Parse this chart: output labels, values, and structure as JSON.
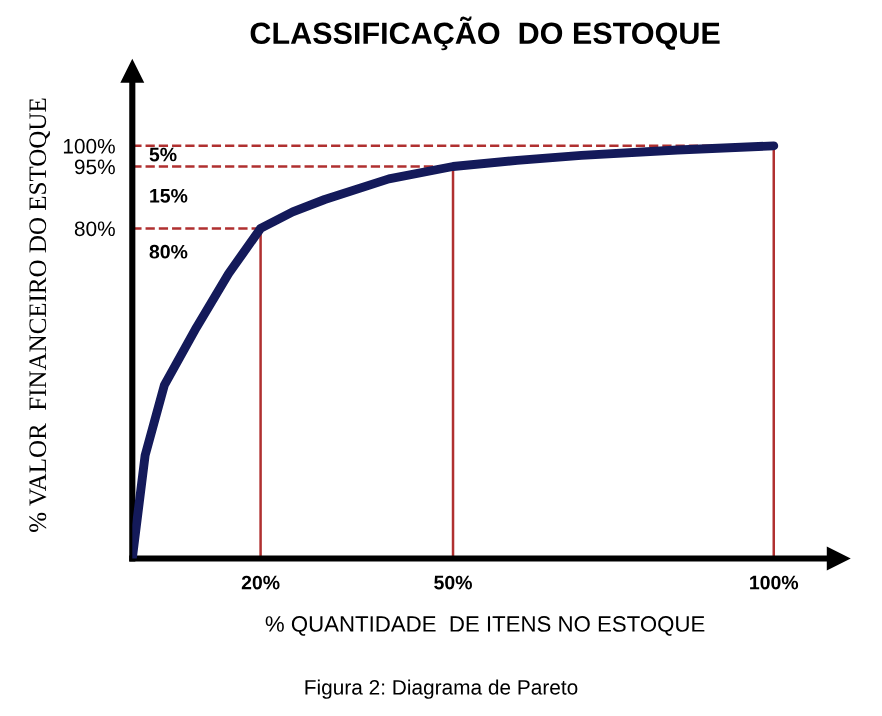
{
  "chart_data": {
    "type": "line",
    "title": "CLASSIFICAÇÃO  DO ESTOQUE",
    "xlabel": "% QUANTIDADE  DE ITENS NO ESTOQUE",
    "ylabel": "% VALOR  FINANCEIRO DO ESTOQUE",
    "series": [
      {
        "color": "#141a5a",
        "x": [
          0,
          2,
          5,
          10,
          15,
          20,
          25,
          30,
          40,
          50,
          60,
          70,
          85,
          100
        ],
        "values": [
          0,
          25,
          42,
          56,
          69,
          80,
          84,
          87,
          92,
          95,
          96.5,
          97.7,
          99,
          100
        ]
      }
    ],
    "xlim": [
      0,
      110
    ],
    "ylim": [
      0,
      118
    ],
    "xticks": [
      {
        "value": 20,
        "label": "20%"
      },
      {
        "value": 50,
        "label": "50%"
      },
      {
        "value": 100,
        "label": "100%"
      }
    ],
    "yticks": [
      {
        "value": 80,
        "label": "80%"
      },
      {
        "value": 95,
        "label": "95%"
      },
      {
        "value": 100,
        "label": "100%"
      }
    ],
    "ref_lines": [
      {
        "axis": "y",
        "value": 100,
        "color": "#b03030",
        "line_style": "dashed"
      },
      {
        "axis": "y",
        "value": 95,
        "color": "#b03030",
        "line_style": "dashed"
      },
      {
        "axis": "y",
        "value": 80,
        "color": "#b03030",
        "line_style": "dashed"
      },
      {
        "axis": "x",
        "value": 20,
        "color": "#b03030",
        "line_style": "solid"
      },
      {
        "axis": "x",
        "value": 50,
        "color": "#b03030",
        "line_style": "solid"
      },
      {
        "axis": "x",
        "value": 100,
        "color": "#b03030",
        "line_style": "solid"
      }
    ],
    "annotations": [
      "5%",
      "15%",
      "80%",
      "Figura 2: Diagrama de Pareto"
    ],
    "grid": false,
    "legend": false,
    "marker": "none",
    "line_style": "solid"
  }
}
